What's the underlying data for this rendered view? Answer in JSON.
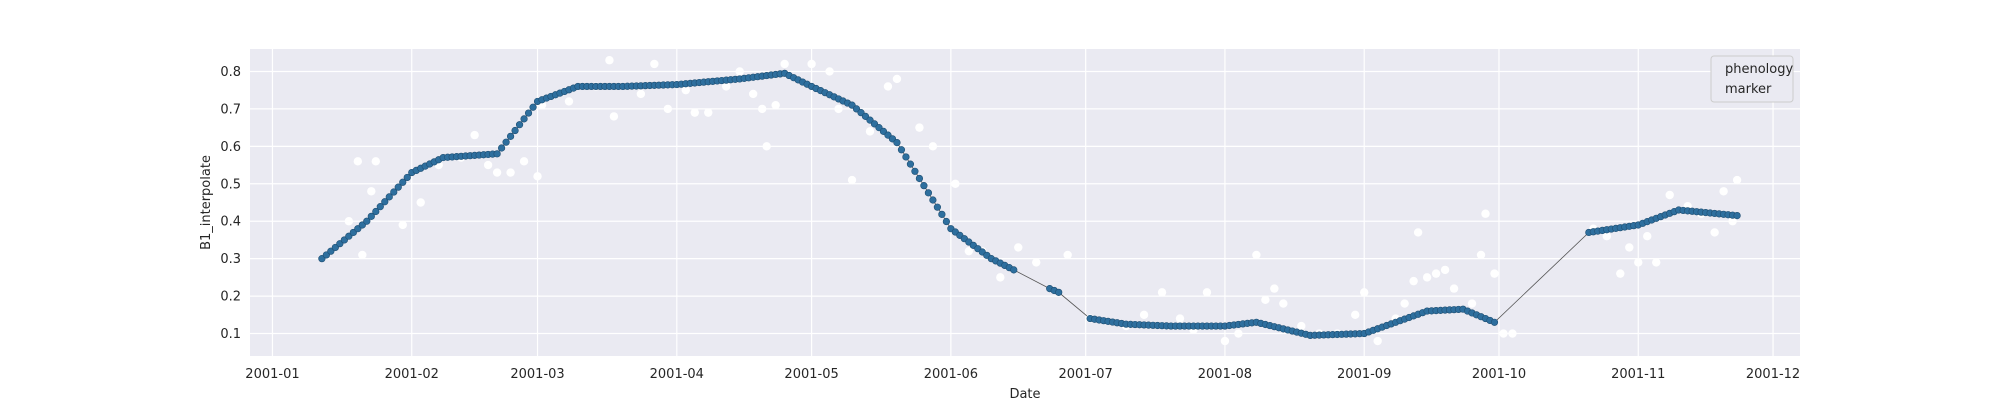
{
  "chart_data": {
    "type": "scatter",
    "xlabel": "Date",
    "ylabel": "B1_interpolate",
    "x_axis_type": "date",
    "xlim": [
      "2000-12-27",
      "2001-12-07"
    ],
    "ylim": [
      0.04,
      0.86
    ],
    "x_ticks": [
      "2001-01",
      "2001-02",
      "2001-03",
      "2001-04",
      "2001-05",
      "2001-06",
      "2001-07",
      "2001-08",
      "2001-09",
      "2001-10",
      "2001-11",
      "2001-12"
    ],
    "y_ticks": [
      0.1,
      0.2,
      0.3,
      0.4,
      0.5,
      0.6,
      0.7,
      0.8
    ],
    "grid": true,
    "background": "#eaeaf2",
    "legend": {
      "placement": "top-right",
      "entries": [
        "phenology",
        "marker"
      ]
    },
    "colors": {
      "interpolated": "#2e6f9e",
      "raw": "#ffffff",
      "line": "#555555"
    },
    "series": [
      {
        "role": "interpolated",
        "style": "line-with-markers",
        "segments": [
          {
            "x": [
              "2001-01-12",
              "2001-01-22",
              "2001-02-01",
              "2001-02-08",
              "2001-02-20",
              "2001-03-01",
              "2001-03-10",
              "2001-03-20",
              "2001-04-01",
              "2001-04-15",
              "2001-04-25",
              "2001-05-01",
              "2001-05-10",
              "2001-05-20",
              "2001-06-01",
              "2001-06-10",
              "2001-06-15"
            ],
            "y": [
              0.3,
              0.4,
              0.53,
              0.57,
              0.58,
              0.72,
              0.76,
              0.76,
              0.765,
              0.78,
              0.795,
              0.76,
              0.71,
              0.61,
              0.38,
              0.3,
              0.27
            ]
          },
          {
            "x": [
              "2001-06-23",
              "2001-06-25"
            ],
            "y": [
              0.22,
              0.21
            ]
          },
          {
            "x": [
              "2001-07-02",
              "2001-07-10",
              "2001-07-20",
              "2001-08-01",
              "2001-08-08",
              "2001-08-20",
              "2001-09-01",
              "2001-09-15",
              "2001-09-23",
              "2001-09-30"
            ],
            "y": [
              0.14,
              0.125,
              0.12,
              0.12,
              0.13,
              0.095,
              0.1,
              0.16,
              0.165,
              0.13
            ]
          },
          {
            "x": [
              "2001-10-21",
              "2001-11-01",
              "2001-11-10",
              "2001-11-23"
            ],
            "y": [
              0.37,
              0.39,
              0.43,
              0.415
            ]
          }
        ]
      },
      {
        "role": "raw",
        "style": "markers",
        "points": [
          [
            "2001-01-18",
            0.4
          ],
          [
            "2001-01-20",
            0.56
          ],
          [
            "2001-01-21",
            0.31
          ],
          [
            "2001-01-23",
            0.48
          ],
          [
            "2001-01-24",
            0.56
          ],
          [
            "2001-01-30",
            0.39
          ],
          [
            "2001-02-03",
            0.45
          ],
          [
            "2001-02-07",
            0.55
          ],
          [
            "2001-02-12",
            0.57
          ],
          [
            "2001-02-15",
            0.63
          ],
          [
            "2001-02-18",
            0.55
          ],
          [
            "2001-02-20",
            0.53
          ],
          [
            "2001-02-23",
            0.53
          ],
          [
            "2001-02-26",
            0.56
          ],
          [
            "2001-03-01",
            0.52
          ],
          [
            "2001-03-02",
            0.71
          ],
          [
            "2001-03-08",
            0.72
          ],
          [
            "2001-03-14",
            0.76
          ],
          [
            "2001-03-17",
            0.83
          ],
          [
            "2001-03-18",
            0.68
          ],
          [
            "2001-03-24",
            0.74
          ],
          [
            "2001-03-27",
            0.82
          ],
          [
            "2001-03-30",
            0.7
          ],
          [
            "2001-04-03",
            0.75
          ],
          [
            "2001-04-05",
            0.69
          ],
          [
            "2001-04-08",
            0.69
          ],
          [
            "2001-04-12",
            0.76
          ],
          [
            "2001-04-15",
            0.8
          ],
          [
            "2001-04-18",
            0.74
          ],
          [
            "2001-04-20",
            0.7
          ],
          [
            "2001-04-21",
            0.6
          ],
          [
            "2001-04-23",
            0.71
          ],
          [
            "2001-04-25",
            0.82
          ],
          [
            "2001-05-01",
            0.82
          ],
          [
            "2001-05-05",
            0.8
          ],
          [
            "2001-05-07",
            0.7
          ],
          [
            "2001-05-10",
            0.51
          ],
          [
            "2001-05-14",
            0.64
          ],
          [
            "2001-05-18",
            0.76
          ],
          [
            "2001-05-20",
            0.78
          ],
          [
            "2001-05-25",
            0.65
          ],
          [
            "2001-05-28",
            0.6
          ],
          [
            "2001-06-02",
            0.5
          ],
          [
            "2001-06-05",
            0.32
          ],
          [
            "2001-06-08",
            0.32
          ],
          [
            "2001-06-12",
            0.25
          ],
          [
            "2001-06-16",
            0.33
          ],
          [
            "2001-06-20",
            0.29
          ],
          [
            "2001-06-27",
            0.31
          ],
          [
            "2001-07-02",
            0.14
          ],
          [
            "2001-07-10",
            0.12
          ],
          [
            "2001-07-14",
            0.15
          ],
          [
            "2001-07-18",
            0.21
          ],
          [
            "2001-07-22",
            0.14
          ],
          [
            "2001-07-25",
            0.11
          ],
          [
            "2001-07-28",
            0.21
          ],
          [
            "2001-08-01",
            0.08
          ],
          [
            "2001-08-04",
            0.1
          ],
          [
            "2001-08-08",
            0.31
          ],
          [
            "2001-08-10",
            0.19
          ],
          [
            "2001-08-12",
            0.22
          ],
          [
            "2001-08-14",
            0.18
          ],
          [
            "2001-08-18",
            0.12
          ],
          [
            "2001-08-22",
            0.1
          ],
          [
            "2001-08-26",
            0.1
          ],
          [
            "2001-08-30",
            0.15
          ],
          [
            "2001-09-01",
            0.21
          ],
          [
            "2001-09-04",
            0.08
          ],
          [
            "2001-09-08",
            0.14
          ],
          [
            "2001-09-10",
            0.18
          ],
          [
            "2001-09-12",
            0.24
          ],
          [
            "2001-09-13",
            0.37
          ],
          [
            "2001-09-15",
            0.25
          ],
          [
            "2001-09-17",
            0.26
          ],
          [
            "2001-09-19",
            0.27
          ],
          [
            "2001-09-21",
            0.22
          ],
          [
            "2001-09-25",
            0.18
          ],
          [
            "2001-09-27",
            0.31
          ],
          [
            "2001-09-28",
            0.42
          ],
          [
            "2001-09-30",
            0.26
          ],
          [
            "2001-10-02",
            0.1
          ],
          [
            "2001-10-04",
            0.1
          ],
          [
            "2001-10-22",
            0.38
          ],
          [
            "2001-10-25",
            0.36
          ],
          [
            "2001-10-28",
            0.26
          ],
          [
            "2001-10-30",
            0.33
          ],
          [
            "2001-11-01",
            0.29
          ],
          [
            "2001-11-03",
            0.36
          ],
          [
            "2001-11-05",
            0.29
          ],
          [
            "2001-11-08",
            0.47
          ],
          [
            "2001-11-12",
            0.44
          ],
          [
            "2001-11-15",
            0.42
          ],
          [
            "2001-11-18",
            0.37
          ],
          [
            "2001-11-20",
            0.48
          ],
          [
            "2001-11-22",
            0.4
          ],
          [
            "2001-11-23",
            0.51
          ]
        ]
      }
    ]
  }
}
